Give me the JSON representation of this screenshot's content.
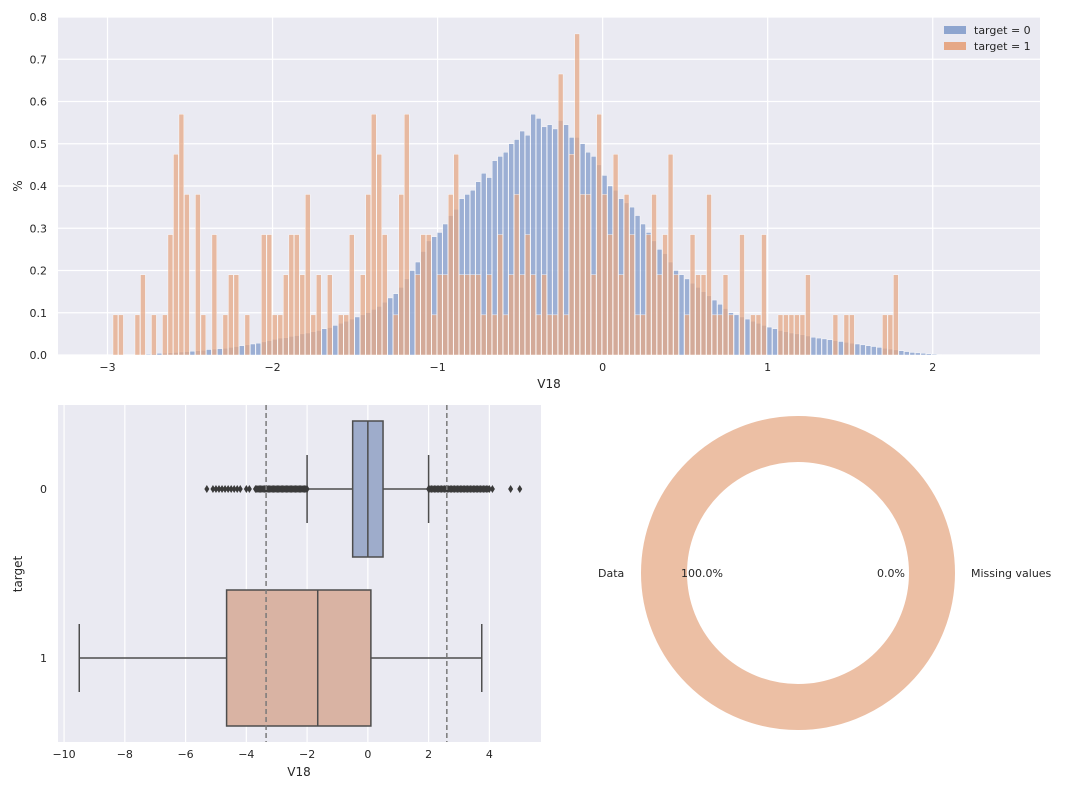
{
  "colors": {
    "target0": "#8ea5cf",
    "target1": "#e6a886",
    "box0": "#9eaccb",
    "box1": "#d9b3a3",
    "pie_data": "#ecbfa4",
    "axes_bg": "#eaeaf2",
    "grid": "#ffffff",
    "line": "#4d4d4d"
  },
  "chart_data": [
    {
      "type": "bar",
      "subtype": "histogram",
      "xlabel": "V18",
      "ylabel": "%",
      "xlim": [
        -3.3,
        2.65
      ],
      "ylim": [
        0,
        0.8
      ],
      "xticks": [
        -3,
        -2,
        -1,
        0,
        1,
        2
      ],
      "xtick_labels": [
        "−3",
        "−2",
        "−1",
        "0",
        "1",
        "2"
      ],
      "yticks": [
        0,
        0.1,
        0.2,
        0.3,
        0.4,
        0.5,
        0.6,
        0.7,
        0.8
      ],
      "ytick_labels": [
        "0.0",
        "0.1",
        "0.2",
        "0.3",
        "0.4",
        "0.5",
        "0.6",
        "0.7",
        "0.8"
      ],
      "grid": true,
      "legend": "top-right",
      "bin_start": -3.0,
      "bin_width": 0.0333,
      "series": [
        {
          "name": "target = 0",
          "values": [
            0,
            0,
            0,
            0,
            0,
            0,
            0.001,
            0.002,
            0.003,
            0.004,
            0.004,
            0.005,
            0.006,
            0.007,
            0.008,
            0.009,
            0.01,
            0.011,
            0.013,
            0.014,
            0.015,
            0.016,
            0.018,
            0.02,
            0.022,
            0.024,
            0.026,
            0.028,
            0.031,
            0.034,
            0.037,
            0.04,
            0.041,
            0.044,
            0.046,
            0.05,
            0.052,
            0.055,
            0.058,
            0.062,
            0.065,
            0.07,
            0.075,
            0.08,
            0.085,
            0.09,
            0.095,
            0.1,
            0.108,
            0.115,
            0.125,
            0.135,
            0.145,
            0.16,
            0.18,
            0.2,
            0.22,
            0.245,
            0.27,
            0.28,
            0.29,
            0.31,
            0.33,
            0.345,
            0.37,
            0.38,
            0.39,
            0.41,
            0.43,
            0.42,
            0.46,
            0.47,
            0.48,
            0.5,
            0.51,
            0.53,
            0.52,
            0.57,
            0.56,
            0.54,
            0.545,
            0.535,
            0.555,
            0.545,
            0.515,
            0.515,
            0.5,
            0.48,
            0.47,
            0.45,
            0.425,
            0.4,
            0.39,
            0.37,
            0.36,
            0.35,
            0.33,
            0.31,
            0.29,
            0.27,
            0.25,
            0.24,
            0.22,
            0.2,
            0.19,
            0.18,
            0.17,
            0.16,
            0.15,
            0.14,
            0.13,
            0.12,
            0.11,
            0.1,
            0.095,
            0.09,
            0.085,
            0.08,
            0.075,
            0.07,
            0.066,
            0.062,
            0.058,
            0.055,
            0.052,
            0.05,
            0.048,
            0.045,
            0.042,
            0.04,
            0.038,
            0.036,
            0.034,
            0.032,
            0.03,
            0.028,
            0.026,
            0.024,
            0.022,
            0.02,
            0.018,
            0.016,
            0.014,
            0.012,
            0.01,
            0.008,
            0.006,
            0.005,
            0.004,
            0.003,
            0.002,
            0.001,
            0,
            0,
            0
          ]
        },
        {
          "name": "target = 1",
          "values": [
            0,
            0.095,
            0.095,
            0,
            0,
            0.095,
            0.19,
            0,
            0.095,
            0,
            0.095,
            0.285,
            0.475,
            0.57,
            0.38,
            0,
            0.38,
            0.095,
            0,
            0.285,
            0,
            0.095,
            0.19,
            0.19,
            0,
            0.095,
            0,
            0,
            0.285,
            0.285,
            0.095,
            0.095,
            0.19,
            0.285,
            0.285,
            0.19,
            0.38,
            0.095,
            0.19,
            0,
            0.19,
            0,
            0.095,
            0.095,
            0.285,
            0,
            0.19,
            0.38,
            0.57,
            0.475,
            0.285,
            0,
            0.095,
            0.38,
            0.57,
            0,
            0.19,
            0.285,
            0.285,
            0.095,
            0.19,
            0.19,
            0.38,
            0.475,
            0.19,
            0.19,
            0.19,
            0.19,
            0.095,
            0.19,
            0.095,
            0.285,
            0.095,
            0.19,
            0.38,
            0.19,
            0.285,
            0.19,
            0.095,
            0.19,
            0.095,
            0.095,
            0.665,
            0.095,
            0.475,
            0.76,
            0.38,
            0.38,
            0.19,
            0.57,
            0.38,
            0.285,
            0.475,
            0.19,
            0.38,
            0.285,
            0.095,
            0.095,
            0.285,
            0.38,
            0.19,
            0.285,
            0.475,
            0.19,
            0,
            0.095,
            0.285,
            0.19,
            0.19,
            0.38,
            0.095,
            0.095,
            0.19,
            0.095,
            0,
            0.285,
            0,
            0.095,
            0.095,
            0.285,
            0,
            0,
            0.095,
            0.095,
            0.095,
            0.095,
            0.095,
            0.19,
            0,
            0,
            0,
            0,
            0.095,
            0,
            0.095,
            0.095,
            0,
            0,
            0,
            0,
            0,
            0.095,
            0.095,
            0.19,
            0,
            0,
            0,
            0,
            0,
            0,
            0
          ]
        }
      ]
    },
    {
      "type": "boxplot",
      "orientation": "horizontal",
      "xlabel": "V18",
      "ylabel": "target",
      "xlim": [
        -10.2,
        5.7
      ],
      "xticks": [
        -10,
        -8,
        -6,
        -4,
        -2,
        0,
        2,
        4
      ],
      "xtick_labels": [
        "−10",
        "−8",
        "−6",
        "−4",
        "−2",
        "0",
        "2",
        "4"
      ],
      "categories": [
        "0",
        "1"
      ],
      "grid": true,
      "boxes": [
        {
          "name": "0",
          "q1": -0.5,
          "median": 0.0,
          "q3": 0.5,
          "whisker_low": -2.0,
          "whisker_high": 2.0,
          "outlier_range_low": [
            -5.3,
            -2.0
          ],
          "outlier_range_high": [
            2.0,
            5.0
          ],
          "outliers_sparse_low": [
            -5.3,
            -4.8,
            -4.6,
            -4.3,
            -3.9
          ],
          "outliers_sparse_high": [
            4.1,
            4.7,
            5.0
          ]
        },
        {
          "name": "1",
          "q1": -4.65,
          "median": -1.65,
          "q3": 0.1,
          "whisker_low": -9.5,
          "whisker_high": 3.75
        }
      ],
      "reference_lines": [
        -3.35,
        2.6
      ]
    },
    {
      "type": "pie",
      "style": "donut",
      "categories": [
        "Data",
        "Missing values"
      ],
      "values": [
        100.0,
        0.0
      ],
      "value_labels": [
        "100.0%",
        "0.0%"
      ]
    }
  ]
}
